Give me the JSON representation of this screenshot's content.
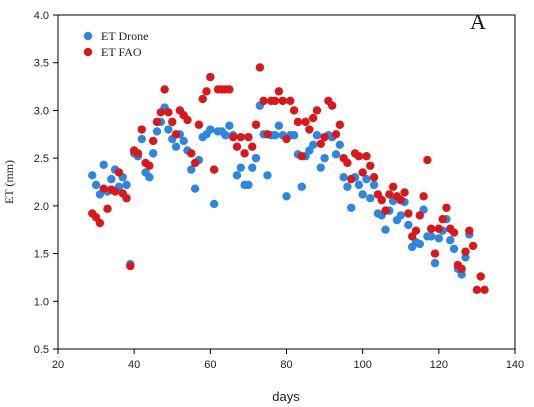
{
  "chart_data": {
    "type": "scatter",
    "panel_label": "A",
    "xlabel": "days",
    "ylabel": "ET (mm)",
    "xlim": [
      20,
      140
    ],
    "ylim": [
      0.5,
      4.0
    ],
    "x_ticks": [
      20,
      40,
      60,
      80,
      100,
      120,
      140
    ],
    "y_ticks": [
      0.5,
      1.0,
      1.5,
      2.0,
      2.5,
      3.0,
      3.5,
      4.0
    ],
    "y_tick_labels": [
      "0.5",
      "1.0",
      "1.5",
      "2.0",
      "2.5",
      "3.0",
      "3.5",
      "4.0"
    ],
    "legend_position": "top-left",
    "series": [
      {
        "name": "ET Drone",
        "color": "#2e86de",
        "points": [
          [
            29,
            2.32
          ],
          [
            30,
            2.22
          ],
          [
            31,
            2.12
          ],
          [
            32,
            2.43
          ],
          [
            33,
            2.15
          ],
          [
            34,
            2.28
          ],
          [
            35,
            2.38
          ],
          [
            36,
            2.2
          ],
          [
            37,
            2.3
          ],
          [
            38,
            2.22
          ],
          [
            39,
            1.39
          ],
          [
            40,
            2.55
          ],
          [
            41,
            2.52
          ],
          [
            42,
            2.7
          ],
          [
            43,
            2.35
          ],
          [
            44,
            2.3
          ],
          [
            45,
            2.55
          ],
          [
            46,
            2.78
          ],
          [
            47,
            2.88
          ],
          [
            48,
            3.03
          ],
          [
            49,
            2.8
          ],
          [
            50,
            2.7
          ],
          [
            51,
            2.62
          ],
          [
            52,
            2.75
          ],
          [
            53,
            2.68
          ],
          [
            54,
            2.58
          ],
          [
            55,
            2.38
          ],
          [
            56,
            2.18
          ],
          [
            57,
            2.48
          ],
          [
            58,
            2.72
          ],
          [
            59,
            2.75
          ],
          [
            60,
            2.8
          ],
          [
            61,
            2.02
          ],
          [
            62,
            2.78
          ],
          [
            63,
            2.78
          ],
          [
            64,
            2.74
          ],
          [
            65,
            2.84
          ],
          [
            66,
            2.74
          ],
          [
            67,
            2.32
          ],
          [
            68,
            2.4
          ],
          [
            69,
            2.22
          ],
          [
            70,
            2.22
          ],
          [
            71,
            2.4
          ],
          [
            72,
            2.5
          ],
          [
            73,
            3.05
          ],
          [
            74,
            2.75
          ],
          [
            75,
            2.32
          ],
          [
            76,
            2.74
          ],
          [
            77,
            2.74
          ],
          [
            78,
            2.84
          ],
          [
            79,
            2.74
          ],
          [
            80,
            2.1
          ],
          [
            81,
            2.74
          ],
          [
            82,
            2.74
          ],
          [
            83,
            2.54
          ],
          [
            84,
            2.2
          ],
          [
            85,
            2.52
          ],
          [
            86,
            2.58
          ],
          [
            87,
            2.64
          ],
          [
            88,
            2.74
          ],
          [
            89,
            2.4
          ],
          [
            90,
            2.5
          ],
          [
            91,
            2.74
          ],
          [
            92,
            2.72
          ],
          [
            93,
            2.54
          ],
          [
            94,
            2.64
          ],
          [
            95,
            2.3
          ],
          [
            96,
            2.2
          ],
          [
            97,
            1.98
          ],
          [
            98,
            2.3
          ],
          [
            99,
            2.22
          ],
          [
            100,
            2.12
          ],
          [
            101,
            2.28
          ],
          [
            102,
            2.08
          ],
          [
            103,
            2.22
          ],
          [
            104,
            1.92
          ],
          [
            105,
            1.9
          ],
          [
            106,
            1.75
          ],
          [
            107,
            1.95
          ],
          [
            108,
            2.05
          ],
          [
            109,
            1.85
          ],
          [
            110,
            1.9
          ],
          [
            111,
            2.04
          ],
          [
            112,
            1.8
          ],
          [
            113,
            1.57
          ],
          [
            114,
            1.62
          ],
          [
            115,
            1.6
          ],
          [
            116,
            1.96
          ],
          [
            117,
            1.68
          ],
          [
            118,
            1.68
          ],
          [
            119,
            1.4
          ],
          [
            120,
            1.66
          ],
          [
            121,
            1.74
          ],
          [
            122,
            1.86
          ],
          [
            123,
            1.64
          ],
          [
            124,
            1.55
          ],
          [
            125,
            1.34
          ],
          [
            126,
            1.28
          ],
          [
            127,
            1.46
          ],
          [
            128,
            1.7
          ]
        ]
      },
      {
        "name": "ET FAO",
        "color": "#d7191c",
        "points": [
          [
            29,
            1.92
          ],
          [
            30,
            1.88
          ],
          [
            31,
            1.82
          ],
          [
            32,
            2.18
          ],
          [
            33,
            1.97
          ],
          [
            34,
            2.17
          ],
          [
            35,
            2.15
          ],
          [
            36,
            2.35
          ],
          [
            37,
            2.13
          ],
          [
            38,
            2.08
          ],
          [
            39,
            1.37
          ],
          [
            40,
            2.58
          ],
          [
            41,
            2.55
          ],
          [
            42,
            2.8
          ],
          [
            43,
            2.45
          ],
          [
            44,
            2.42
          ],
          [
            45,
            2.68
          ],
          [
            46,
            2.88
          ],
          [
            47,
            2.98
          ],
          [
            48,
            3.22
          ],
          [
            49,
            2.98
          ],
          [
            50,
            2.88
          ],
          [
            51,
            2.75
          ],
          [
            52,
            3.0
          ],
          [
            53,
            2.95
          ],
          [
            54,
            2.9
          ],
          [
            55,
            2.55
          ],
          [
            56,
            2.45
          ],
          [
            57,
            2.85
          ],
          [
            58,
            3.12
          ],
          [
            59,
            3.2
          ],
          [
            60,
            3.35
          ],
          [
            61,
            2.38
          ],
          [
            62,
            3.22
          ],
          [
            63,
            3.22
          ],
          [
            64,
            3.22
          ],
          [
            65,
            3.22
          ],
          [
            66,
            2.72
          ],
          [
            67,
            2.62
          ],
          [
            68,
            2.72
          ],
          [
            69,
            2.55
          ],
          [
            70,
            2.72
          ],
          [
            71,
            2.62
          ],
          [
            72,
            2.85
          ],
          [
            73,
            3.45
          ],
          [
            74,
            3.1
          ],
          [
            75,
            2.75
          ],
          [
            76,
            3.1
          ],
          [
            77,
            3.1
          ],
          [
            78,
            3.2
          ],
          [
            79,
            3.1
          ],
          [
            80,
            2.7
          ],
          [
            81,
            3.1
          ],
          [
            82,
            3.0
          ],
          [
            83,
            2.88
          ],
          [
            84,
            2.52
          ],
          [
            85,
            2.88
          ],
          [
            86,
            2.8
          ],
          [
            87,
            2.92
          ],
          [
            88,
            3.0
          ],
          [
            89,
            2.65
          ],
          [
            90,
            2.72
          ],
          [
            91,
            3.1
          ],
          [
            92,
            3.05
          ],
          [
            93,
            2.75
          ],
          [
            94,
            2.85
          ],
          [
            95,
            2.5
          ],
          [
            96,
            2.45
          ],
          [
            97,
            2.28
          ],
          [
            98,
            2.55
          ],
          [
            99,
            2.52
          ],
          [
            100,
            2.35
          ],
          [
            101,
            2.52
          ],
          [
            102,
            2.42
          ],
          [
            103,
            2.3
          ],
          [
            104,
            2.12
          ],
          [
            105,
            2.06
          ],
          [
            106,
            1.95
          ],
          [
            107,
            2.12
          ],
          [
            108,
            2.2
          ],
          [
            109,
            2.1
          ],
          [
            110,
            2.06
          ],
          [
            111,
            2.14
          ],
          [
            112,
            1.92
          ],
          [
            113,
            1.68
          ],
          [
            114,
            1.74
          ],
          [
            115,
            1.9
          ],
          [
            116,
            2.1
          ],
          [
            117,
            2.48
          ],
          [
            118,
            1.76
          ],
          [
            119,
            1.5
          ],
          [
            120,
            1.76
          ],
          [
            121,
            1.86
          ],
          [
            122,
            1.98
          ],
          [
            123,
            1.76
          ],
          [
            124,
            1.72
          ],
          [
            125,
            1.38
          ],
          [
            126,
            1.34
          ],
          [
            127,
            1.52
          ],
          [
            128,
            1.74
          ],
          [
            129,
            1.58
          ],
          [
            130,
            1.12
          ],
          [
            131,
            1.26
          ],
          [
            132,
            1.12
          ]
        ]
      }
    ]
  }
}
